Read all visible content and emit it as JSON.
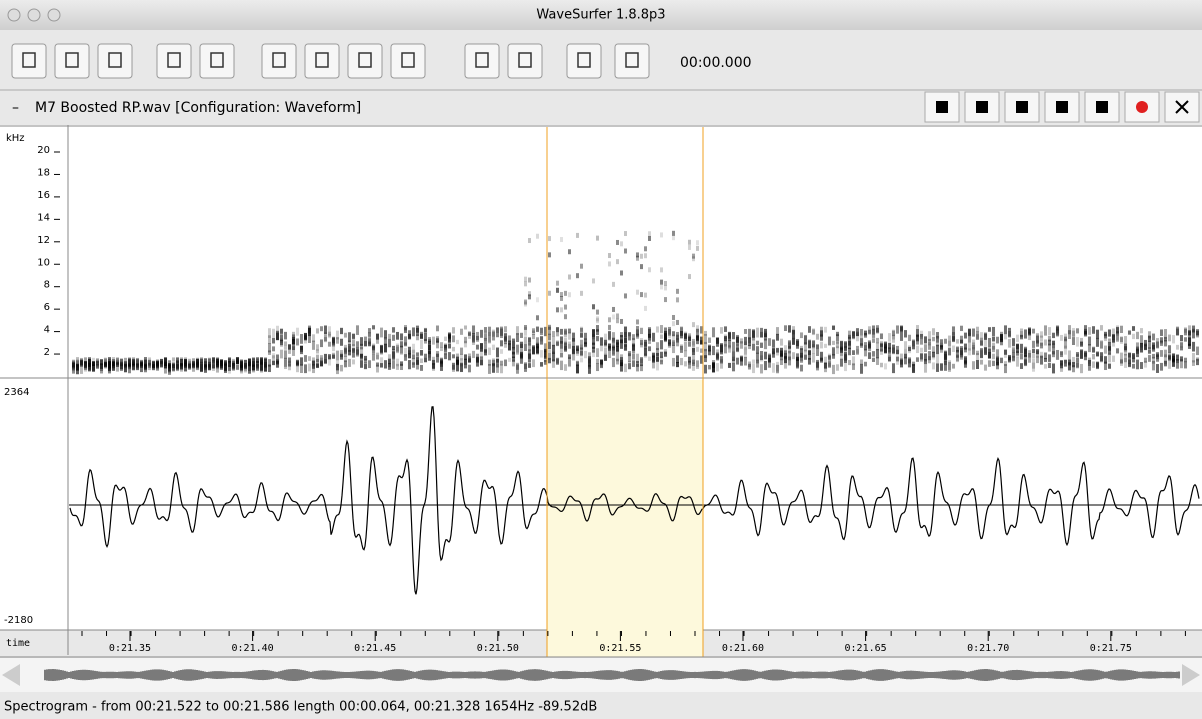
{
  "window": {
    "title": "WaveSurfer 1.8.8p3"
  },
  "toolbar": {
    "time": "00:00.000"
  },
  "sound": {
    "collapse": "–",
    "name": "M7 Boosted RP.wav [Configuration: Waveform]"
  },
  "spectrogram": {
    "unit": "kHz",
    "ticks": [
      "20",
      "18",
      "16",
      "14",
      "12",
      "10",
      "8",
      "6",
      "4",
      "2"
    ]
  },
  "waveform": {
    "max": "2364",
    "min": "-2180"
  },
  "time_axis": {
    "label": "time",
    "ticks": [
      "0:21.35",
      "0:21.40",
      "0:21.45",
      "0:21.50",
      "0:21.55",
      "0:21.60",
      "0:21.65",
      "0:21.70",
      "0:21.75"
    ]
  },
  "status": "Spectrogram - from 00:21.522 to 00:21.586 length 00:00.064, 00:21.328 1654Hz -89.52dB"
}
